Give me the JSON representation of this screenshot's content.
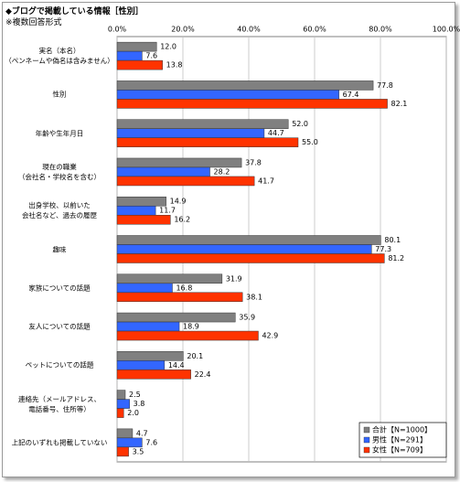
{
  "chart_data": {
    "type": "bar",
    "orientation": "horizontal",
    "title": "◆ブログで掲載している情報［性別］",
    "subtitle": "※複数回答形式",
    "categories": [
      "実名（本名）\n（ペンネームや偽名は含みません）",
      "性別",
      "年齢や生年月日",
      "現在の職業\n（会社名・学校名を含む）",
      "出身学校、以前いた\n会社名など、過去の履歴",
      "趣味",
      "家族についての話題",
      "友人についての話題",
      "ペットについての話題",
      "連絡先（メールアドレス、\n電話番号、住所等）",
      "上記のいずれも掲載していない"
    ],
    "series": [
      {
        "name": "合計【N=1000】",
        "color": "#808080",
        "values": [
          12.0,
          77.8,
          52.0,
          37.8,
          14.9,
          80.1,
          31.9,
          35.9,
          20.1,
          2.5,
          4.7
        ],
        "value_labels": [
          "12.0",
          "77.8",
          "52.0",
          "37.8",
          "14.9",
          "80.1",
          "31.9",
          "35.9",
          "20.1",
          "2.5",
          "4.7"
        ]
      },
      {
        "name": "男性【N=291】",
        "color": "#3366ff",
        "values": [
          7.6,
          67.4,
          44.7,
          28.2,
          11.7,
          77.3,
          16.8,
          18.9,
          14.4,
          3.8,
          7.6
        ],
        "value_labels": [
          "7.6",
          "67.4",
          "44.7",
          "28.2",
          "11.7",
          "77.3",
          "16.8",
          "18.9",
          "14.4",
          "3.8",
          "7.6"
        ]
      },
      {
        "name": "女性【N=709】",
        "color": "#ff3300",
        "values": [
          13.8,
          82.1,
          55.0,
          41.7,
          16.2,
          81.2,
          38.1,
          42.9,
          22.4,
          2.0,
          3.5
        ],
        "value_labels": [
          "13.8",
          "82.1",
          "55.0",
          "41.7",
          "16.2",
          "81.2",
          "38.1",
          "42.9",
          "22.4",
          "2.0",
          "3.5"
        ]
      }
    ],
    "xlim": [
      0,
      100
    ],
    "xticks": [
      {
        "value": 0,
        "label": "0.0%"
      },
      {
        "value": 20,
        "label": "20.0%"
      },
      {
        "value": 40,
        "label": "40.0%"
      },
      {
        "value": 60,
        "label": "60.0%"
      },
      {
        "value": 80,
        "label": "80.0%"
      },
      {
        "value": 100,
        "label": "100.0%"
      }
    ],
    "grid": true,
    "legend": "lower right"
  }
}
